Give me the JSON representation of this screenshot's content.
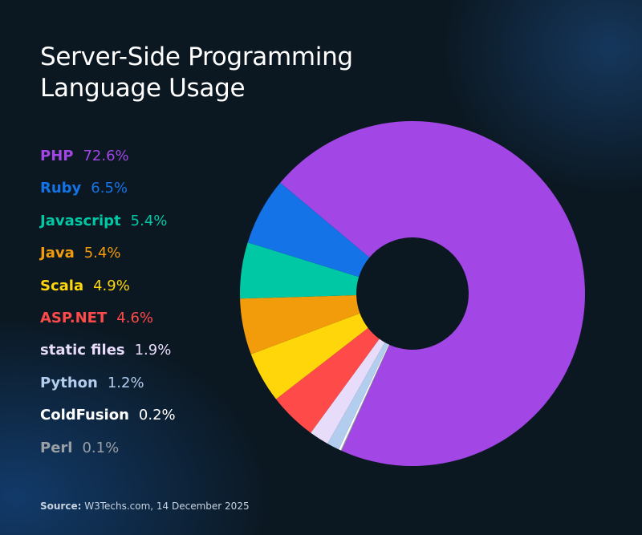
{
  "chart_data": {
    "type": "pie",
    "variant": "donut",
    "title": "Server-Side Programming Language Usage",
    "legend_position": "left",
    "slices": [
      {
        "label": "PHP",
        "value": 72.6,
        "display": "72.6%",
        "color": "#a246e6"
      },
      {
        "label": "Ruby",
        "value": 6.5,
        "display": "6.5%",
        "color": "#1473e6"
      },
      {
        "label": "Javascript",
        "value": 5.4,
        "display": "5.4%",
        "color": "#00c8a5"
      },
      {
        "label": "Java",
        "value": 5.4,
        "display": "5.4%",
        "color": "#f39c0b"
      },
      {
        "label": "Scala",
        "value": 4.9,
        "display": "4.9%",
        "color": "#ffd60a"
      },
      {
        "label": "ASP.NET",
        "value": 4.6,
        "display": "4.6%",
        "color": "#ff4a4a"
      },
      {
        "label": "static files",
        "value": 1.9,
        "display": "1.9%",
        "color": "#e8dcfb"
      },
      {
        "label": "Python",
        "value": 1.2,
        "display": "1.2%",
        "color": "#b3cdee"
      },
      {
        "label": "ColdFusion",
        "value": 0.2,
        "display": "0.2%",
        "color": "#ffffff"
      },
      {
        "label": "Perl",
        "value": 0.1,
        "display": "0.1%",
        "color": "#9aa0a6"
      }
    ]
  },
  "title_lines": [
    "Server-Side Programming",
    "Language Usage"
  ],
  "source": {
    "label": "Source:",
    "text": " W3Techs.com, 14 December 2025"
  }
}
